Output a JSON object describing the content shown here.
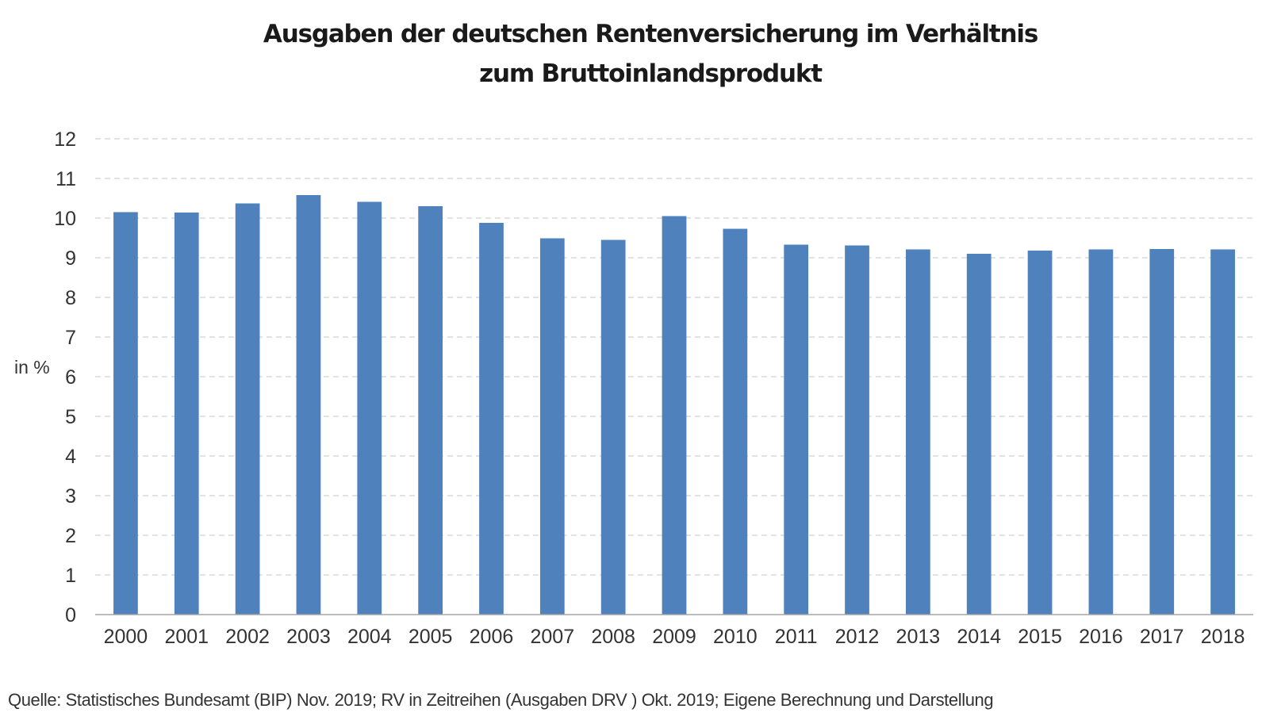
{
  "title": {
    "line1": "Ausgaben der deutschen Rentenversicherung im Verhältnis",
    "line2": "zum Bruttoinlandsprodukt"
  },
  "source": "Quelle: Statistisches Bundesamt (BIP) Nov. 2019; RV in Zeitreihen (Ausgaben DRV ) Okt. 2019; Eigene Berechnung und Darstellung",
  "colors": {
    "bar": "#4f81bd",
    "grid": "#d0d0d0",
    "axis": "#a6a6a6",
    "text": "#333333"
  },
  "chart_data": {
    "type": "bar",
    "title": "Ausgaben der deutschen Rentenversicherung im Verhältnis zum Bruttoinlandsprodukt",
    "xlabel": "",
    "ylabel": "in %",
    "ylim": [
      0,
      12
    ],
    "yticks": [
      0,
      1,
      2,
      3,
      4,
      5,
      6,
      7,
      8,
      9,
      10,
      11,
      12
    ],
    "grid": true,
    "grid_style": "dashed",
    "legend": "none",
    "categories": [
      "2000",
      "2001",
      "2002",
      "2003",
      "2004",
      "2005",
      "2006",
      "2007",
      "2008",
      "2009",
      "2010",
      "2011",
      "2012",
      "2013",
      "2014",
      "2015",
      "2016",
      "2017",
      "2018"
    ],
    "values": [
      10.15,
      10.14,
      10.37,
      10.58,
      10.41,
      10.3,
      9.88,
      9.49,
      9.45,
      10.05,
      9.73,
      9.33,
      9.31,
      9.21,
      9.1,
      9.18,
      9.21,
      9.22,
      9.21
    ]
  }
}
